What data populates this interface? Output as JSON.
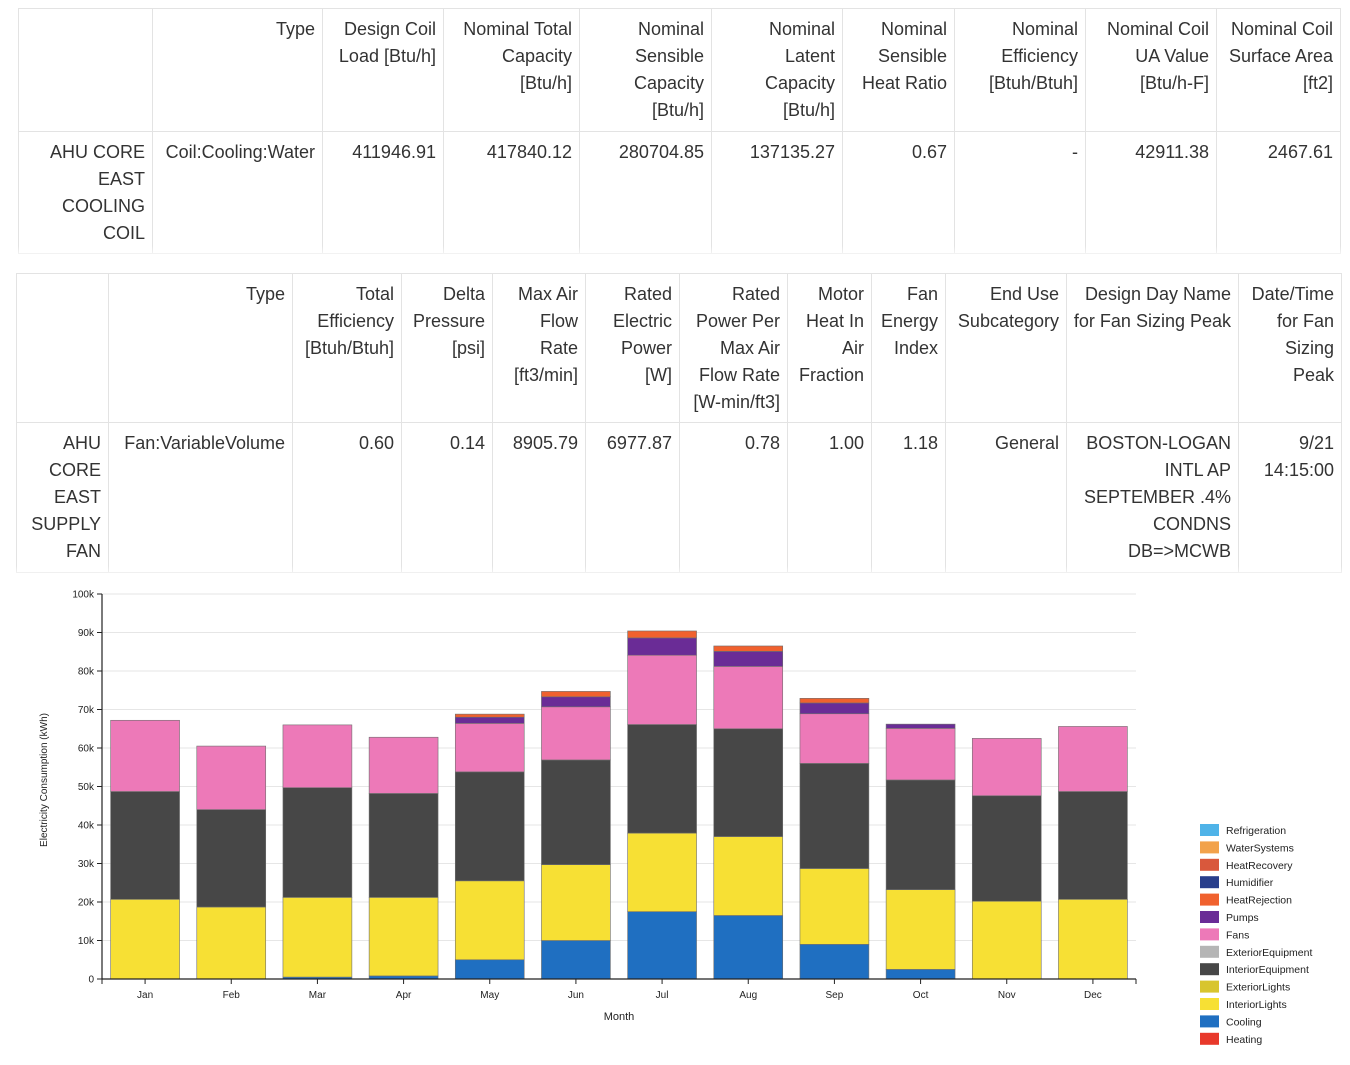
{
  "coil_table": {
    "headers": [
      "",
      "Type",
      "Design Coil Load [Btu/h]",
      "Nominal Total Capacity [Btu/h]",
      "Nominal Sensible Capacity [Btu/h]",
      "Nominal Latent Capacity [Btu/h]",
      "Nominal Sensible Heat Ratio",
      "Nominal Efficiency [Btuh/Btuh]",
      "Nominal Coil UA Value [Btu/h-F]",
      "Nominal Coil Surface Area [ft2]"
    ],
    "row": [
      "AHU CORE EAST COOLING COIL",
      "Coil:Cooling:Water",
      "411946.91",
      "417840.12",
      "280704.85",
      "137135.27",
      "0.67",
      "-",
      "42911.38",
      "2467.61"
    ]
  },
  "fan_table": {
    "headers": [
      "",
      "Type",
      "Total Efficiency [Btuh/Btuh]",
      "Delta Pressure [psi]",
      "Max Air Flow Rate [ft3/min]",
      "Rated Electric Power [W]",
      "Rated Power Per Max Air Flow Rate [W-min/ft3]",
      "Motor Heat In Air Fraction",
      "Fan Energy Index",
      "End Use Subcategory",
      "Design Day Name for Fan Sizing Peak",
      "Date/Time for Fan Sizing Peak"
    ],
    "row": [
      "AHU CORE EAST SUPPLY FAN",
      "Fan:VariableVolume",
      "0.60",
      "0.14",
      "8905.79",
      "6977.87",
      "0.78",
      "1.00",
      "1.18",
      "General",
      "BOSTON-LOGAN INTL AP SEPTEMBER .4% CONDNS DB=>MCWB",
      "9/21 14:15:00"
    ]
  },
  "chart_data": {
    "type": "bar",
    "stacked": true,
    "title": "",
    "xlabel": "Month",
    "ylabel": "Electricity Consumption (kWh)",
    "ylim": [
      0,
      100000
    ],
    "yticks": [
      0,
      10000,
      20000,
      30000,
      40000,
      50000,
      60000,
      70000,
      80000,
      90000,
      100000
    ],
    "ytick_labels": [
      "0",
      "10k",
      "20k",
      "30k",
      "40k",
      "50k",
      "60k",
      "70k",
      "80k",
      "90k",
      "100k"
    ],
    "categories": [
      "Jan",
      "Feb",
      "Mar",
      "Apr",
      "May",
      "Jun",
      "Jul",
      "Aug",
      "Sep",
      "Oct",
      "Nov",
      "Dec"
    ],
    "legend_position": "right",
    "series": [
      {
        "name": "Heating",
        "color": "#e8392b",
        "values": [
          0,
          0,
          0,
          0,
          0,
          0,
          0,
          0,
          0,
          0,
          0,
          0
        ]
      },
      {
        "name": "Cooling",
        "color": "#1f6fc1",
        "values": [
          0,
          0,
          500,
          800,
          5000,
          10000,
          17500,
          16500,
          9000,
          2500,
          0,
          0
        ]
      },
      {
        "name": "InteriorLights",
        "color": "#f7e034",
        "values": [
          20700,
          18700,
          20700,
          20400,
          20500,
          19700,
          20400,
          20500,
          19700,
          20700,
          20200,
          20700
        ]
      },
      {
        "name": "ExteriorLights",
        "color": "#d8c52e",
        "values": [
          0,
          0,
          0,
          0,
          0,
          0,
          0,
          0,
          0,
          0,
          0,
          0
        ]
      },
      {
        "name": "InteriorEquipment",
        "color": "#474747",
        "values": [
          28000,
          25300,
          28500,
          27000,
          28300,
          27200,
          28200,
          28000,
          27300,
          28500,
          27400,
          28000
        ]
      },
      {
        "name": "ExteriorEquipment",
        "color": "#b5b5b5",
        "values": [
          0,
          0,
          0,
          0,
          0,
          0,
          0,
          0,
          0,
          0,
          0,
          0
        ]
      },
      {
        "name": "Fans",
        "color": "#ed79b8",
        "values": [
          18500,
          16500,
          16300,
          14600,
          12600,
          13800,
          18000,
          16200,
          12900,
          13400,
          14900,
          16900
        ]
      },
      {
        "name": "Pumps",
        "color": "#6a2c96",
        "values": [
          0,
          0,
          0,
          0,
          1600,
          2600,
          4500,
          3900,
          2800,
          1100,
          0,
          0
        ]
      },
      {
        "name": "HeatRejection",
        "color": "#f0612e",
        "values": [
          0,
          0,
          0,
          0,
          800,
          1400,
          1800,
          1400,
          1200,
          0,
          0,
          0
        ]
      },
      {
        "name": "Humidifier",
        "color": "#283e8c",
        "values": [
          0,
          0,
          0,
          0,
          0,
          0,
          0,
          0,
          0,
          0,
          0,
          0
        ]
      },
      {
        "name": "HeatRecovery",
        "color": "#d9583c",
        "values": [
          0,
          0,
          0,
          0,
          0,
          0,
          0,
          0,
          0,
          0,
          0,
          0
        ]
      },
      {
        "name": "WaterSystems",
        "color": "#f2a24b",
        "values": [
          0,
          0,
          0,
          0,
          0,
          0,
          0,
          0,
          0,
          0,
          0,
          0
        ]
      },
      {
        "name": "Refrigeration",
        "color": "#4fb3e8",
        "values": [
          0,
          0,
          0,
          0,
          0,
          0,
          0,
          0,
          0,
          0,
          0,
          0
        ]
      }
    ]
  }
}
